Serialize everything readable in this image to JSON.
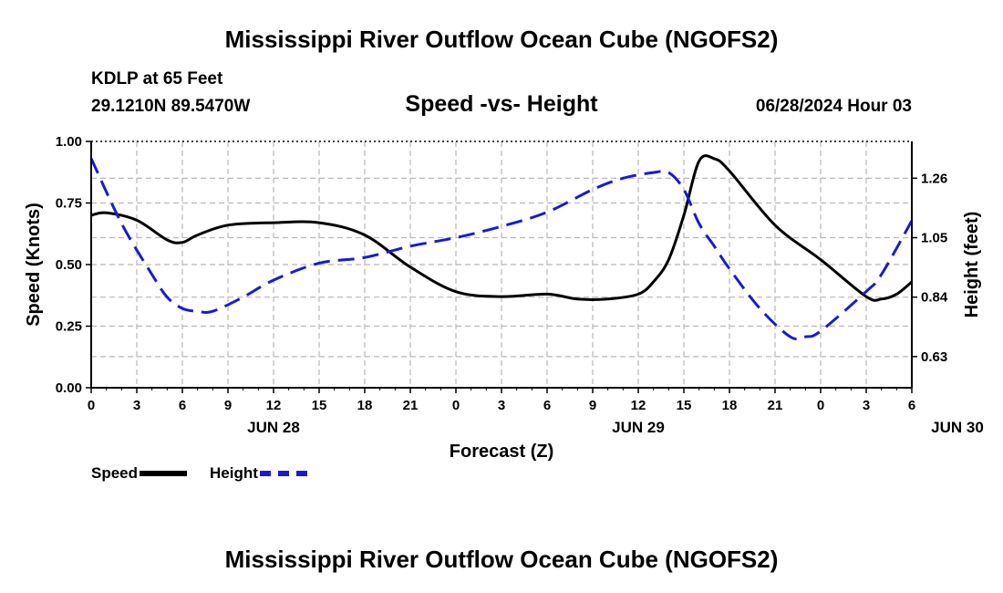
{
  "header": {
    "title": "Mississippi River Outflow Ocean Cube (NGOFS2)",
    "station": "KDLP at 65 Feet",
    "coords": "29.1210N  89.5470W",
    "subtitle": "Speed -vs- Height",
    "datetime": "06/28/2024 Hour 03"
  },
  "footer": {
    "title": "Mississippi River Outflow Ocean Cube (NGOFS2)"
  },
  "legend": {
    "speed_label": "Speed",
    "height_label": "Height"
  },
  "colors": {
    "speed": "#000000",
    "height": "#1a1ad6",
    "grid": "#b8b8b8"
  },
  "chart_data": {
    "type": "line",
    "x_label": "Forecast (Z)",
    "x_ticks": [
      "0",
      "3",
      "6",
      "9",
      "12",
      "15",
      "18",
      "21",
      "0",
      "3",
      "6",
      "9",
      "12",
      "15",
      "18",
      "21",
      "0",
      "3",
      "6"
    ],
    "day_labels": [
      {
        "label": "JUN 28",
        "hour": 12
      },
      {
        "label": "JUN 29",
        "hour": 36
      },
      {
        "label": "JUN 30",
        "hour": 57
      }
    ],
    "x_range": [
      0,
      54
    ],
    "y_left": {
      "label": "Speed (Knots)",
      "range": [
        0,
        1.0
      ],
      "ticks": [
        "0.00",
        "0.25",
        "0.50",
        "0.75",
        "1.00"
      ]
    },
    "y_right": {
      "label": "Height (feet)",
      "range": [
        0.52,
        1.39
      ],
      "ticks": [
        "0.63",
        "0.84",
        "1.05",
        "1.26"
      ]
    },
    "series": [
      {
        "name": "Speed",
        "axis": "left",
        "x": [
          0,
          1,
          3,
          5,
          6,
          7,
          9,
          12,
          15,
          18,
          21,
          24,
          27,
          30,
          32,
          34,
          36,
          37,
          38,
          39,
          40,
          41,
          42,
          45,
          48,
          51,
          52,
          53,
          54
        ],
        "y": [
          0.7,
          0.71,
          0.68,
          0.6,
          0.59,
          0.62,
          0.66,
          0.67,
          0.67,
          0.62,
          0.49,
          0.39,
          0.37,
          0.38,
          0.36,
          0.36,
          0.38,
          0.43,
          0.52,
          0.7,
          0.92,
          0.93,
          0.88,
          0.66,
          0.52,
          0.37,
          0.36,
          0.38,
          0.43
        ]
      },
      {
        "name": "Height",
        "axis": "right",
        "x": [
          0,
          2,
          4,
          5,
          6,
          7,
          8,
          10,
          12,
          15,
          18,
          21,
          24,
          27,
          30,
          33,
          35,
          37,
          38,
          39,
          40,
          41,
          42,
          44,
          46,
          47,
          48,
          51,
          52,
          54
        ],
        "y": [
          1.33,
          1.1,
          0.92,
          0.84,
          0.8,
          0.79,
          0.79,
          0.84,
          0.9,
          0.96,
          0.98,
          1.02,
          1.05,
          1.09,
          1.14,
          1.22,
          1.26,
          1.28,
          1.28,
          1.22,
          1.1,
          1.02,
          0.94,
          0.8,
          0.7,
          0.7,
          0.72,
          0.86,
          0.92,
          1.11
        ]
      }
    ]
  }
}
